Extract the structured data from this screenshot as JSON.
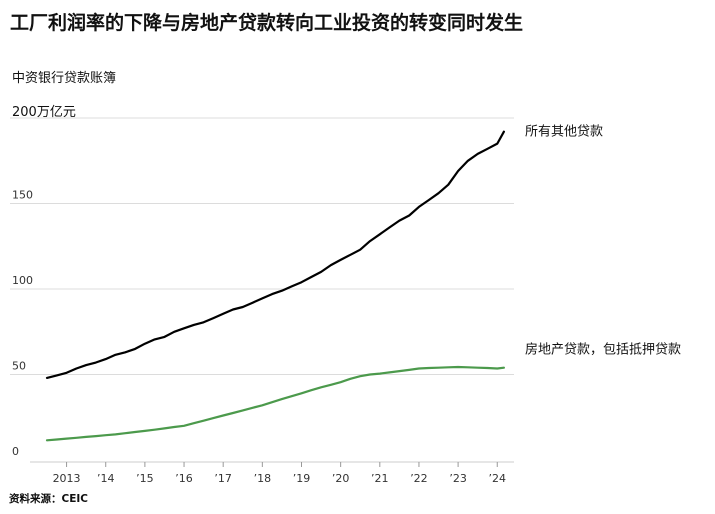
{
  "title": "工厂利润率的下降与房地产贷款转向工业投资的转变同时发生",
  "subtitle": "中资银行贷款账簿",
  "unit_label": "200万亿元",
  "source": "资料来源：CEIC",
  "chart_data": {
    "type": "line",
    "title": "工厂利润率的下降与房地产贷款转向工业投资的转变同时发生",
    "subtitle": "中资银行贷款账簿",
    "ylabel": "",
    "xlabel": "",
    "ylim": [
      0,
      200
    ],
    "xlim": [
      2012.5,
      2024.3
    ],
    "yticks": [
      0,
      50,
      100,
      150,
      200
    ],
    "ytick_labels": [
      "0",
      "50",
      "100",
      "150",
      "200万亿元"
    ],
    "xticks": [
      2013,
      2014,
      2015,
      2016,
      2017,
      2018,
      2019,
      2020,
      2021,
      2022,
      2023,
      2024
    ],
    "xtick_labels": [
      "2013",
      "’14",
      "’15",
      "’16",
      "’17",
      "’18",
      "’19",
      "’20",
      "’21",
      "’22",
      "’23",
      "’24"
    ],
    "grid": "horizontal",
    "series": [
      {
        "name": "所有其他贷款",
        "color": "#000000",
        "x": [
          2012.5,
          2012.75,
          2013.0,
          2013.25,
          2013.5,
          2013.75,
          2014.0,
          2014.25,
          2014.5,
          2014.75,
          2015.0,
          2015.25,
          2015.5,
          2015.75,
          2016.0,
          2016.25,
          2016.5,
          2016.75,
          2017.0,
          2017.25,
          2017.5,
          2017.75,
          2018.0,
          2018.25,
          2018.5,
          2018.75,
          2019.0,
          2019.25,
          2019.5,
          2019.75,
          2020.0,
          2020.25,
          2020.5,
          2020.75,
          2021.0,
          2021.25,
          2021.5,
          2021.75,
          2022.0,
          2022.25,
          2022.5,
          2022.75,
          2023.0,
          2023.25,
          2023.5,
          2023.75,
          2024.0,
          2024.17
        ],
        "y": [
          48,
          49.5,
          51,
          53.5,
          55.5,
          57,
          59,
          61.5,
          63,
          65,
          68,
          70.5,
          72,
          75,
          77,
          79,
          80.5,
          83,
          85.5,
          88,
          89.5,
          92,
          94.5,
          97,
          99,
          101.5,
          104,
          107,
          110,
          114,
          117,
          120,
          123,
          128,
          132,
          136,
          140,
          143,
          148,
          152,
          156,
          161,
          169,
          175,
          179,
          182,
          185,
          192
        ]
      },
      {
        "name": "房地产贷款，包括抵押贷款",
        "color": "#4c9a4c",
        "x": [
          2012.5,
          2012.75,
          2013.0,
          2013.25,
          2013.5,
          2013.75,
          2014.0,
          2014.25,
          2014.5,
          2014.75,
          2015.0,
          2015.25,
          2015.5,
          2015.75,
          2016.0,
          2016.25,
          2016.5,
          2016.75,
          2017.0,
          2017.25,
          2017.5,
          2017.75,
          2018.0,
          2018.25,
          2018.5,
          2018.75,
          2019.0,
          2019.25,
          2019.5,
          2019.75,
          2020.0,
          2020.25,
          2020.5,
          2020.75,
          2021.0,
          2021.25,
          2021.5,
          2021.75,
          2022.0,
          2022.25,
          2022.5,
          2022.75,
          2023.0,
          2023.25,
          2023.5,
          2023.75,
          2024.0,
          2024.17
        ],
        "y": [
          11.5,
          12,
          12.5,
          13,
          13.5,
          14,
          14.5,
          15,
          15.7,
          16.4,
          17,
          17.7,
          18.5,
          19.3,
          20,
          21.5,
          23,
          24.5,
          26,
          27.5,
          29,
          30.5,
          32,
          33.8,
          35.6,
          37.3,
          39,
          40.8,
          42.5,
          44,
          45.5,
          47.5,
          49,
          50,
          50.5,
          51.2,
          52,
          52.7,
          53.5,
          53.8,
          54,
          54.2,
          54.4,
          54.2,
          54,
          53.8,
          53.5,
          54
        ]
      }
    ]
  }
}
